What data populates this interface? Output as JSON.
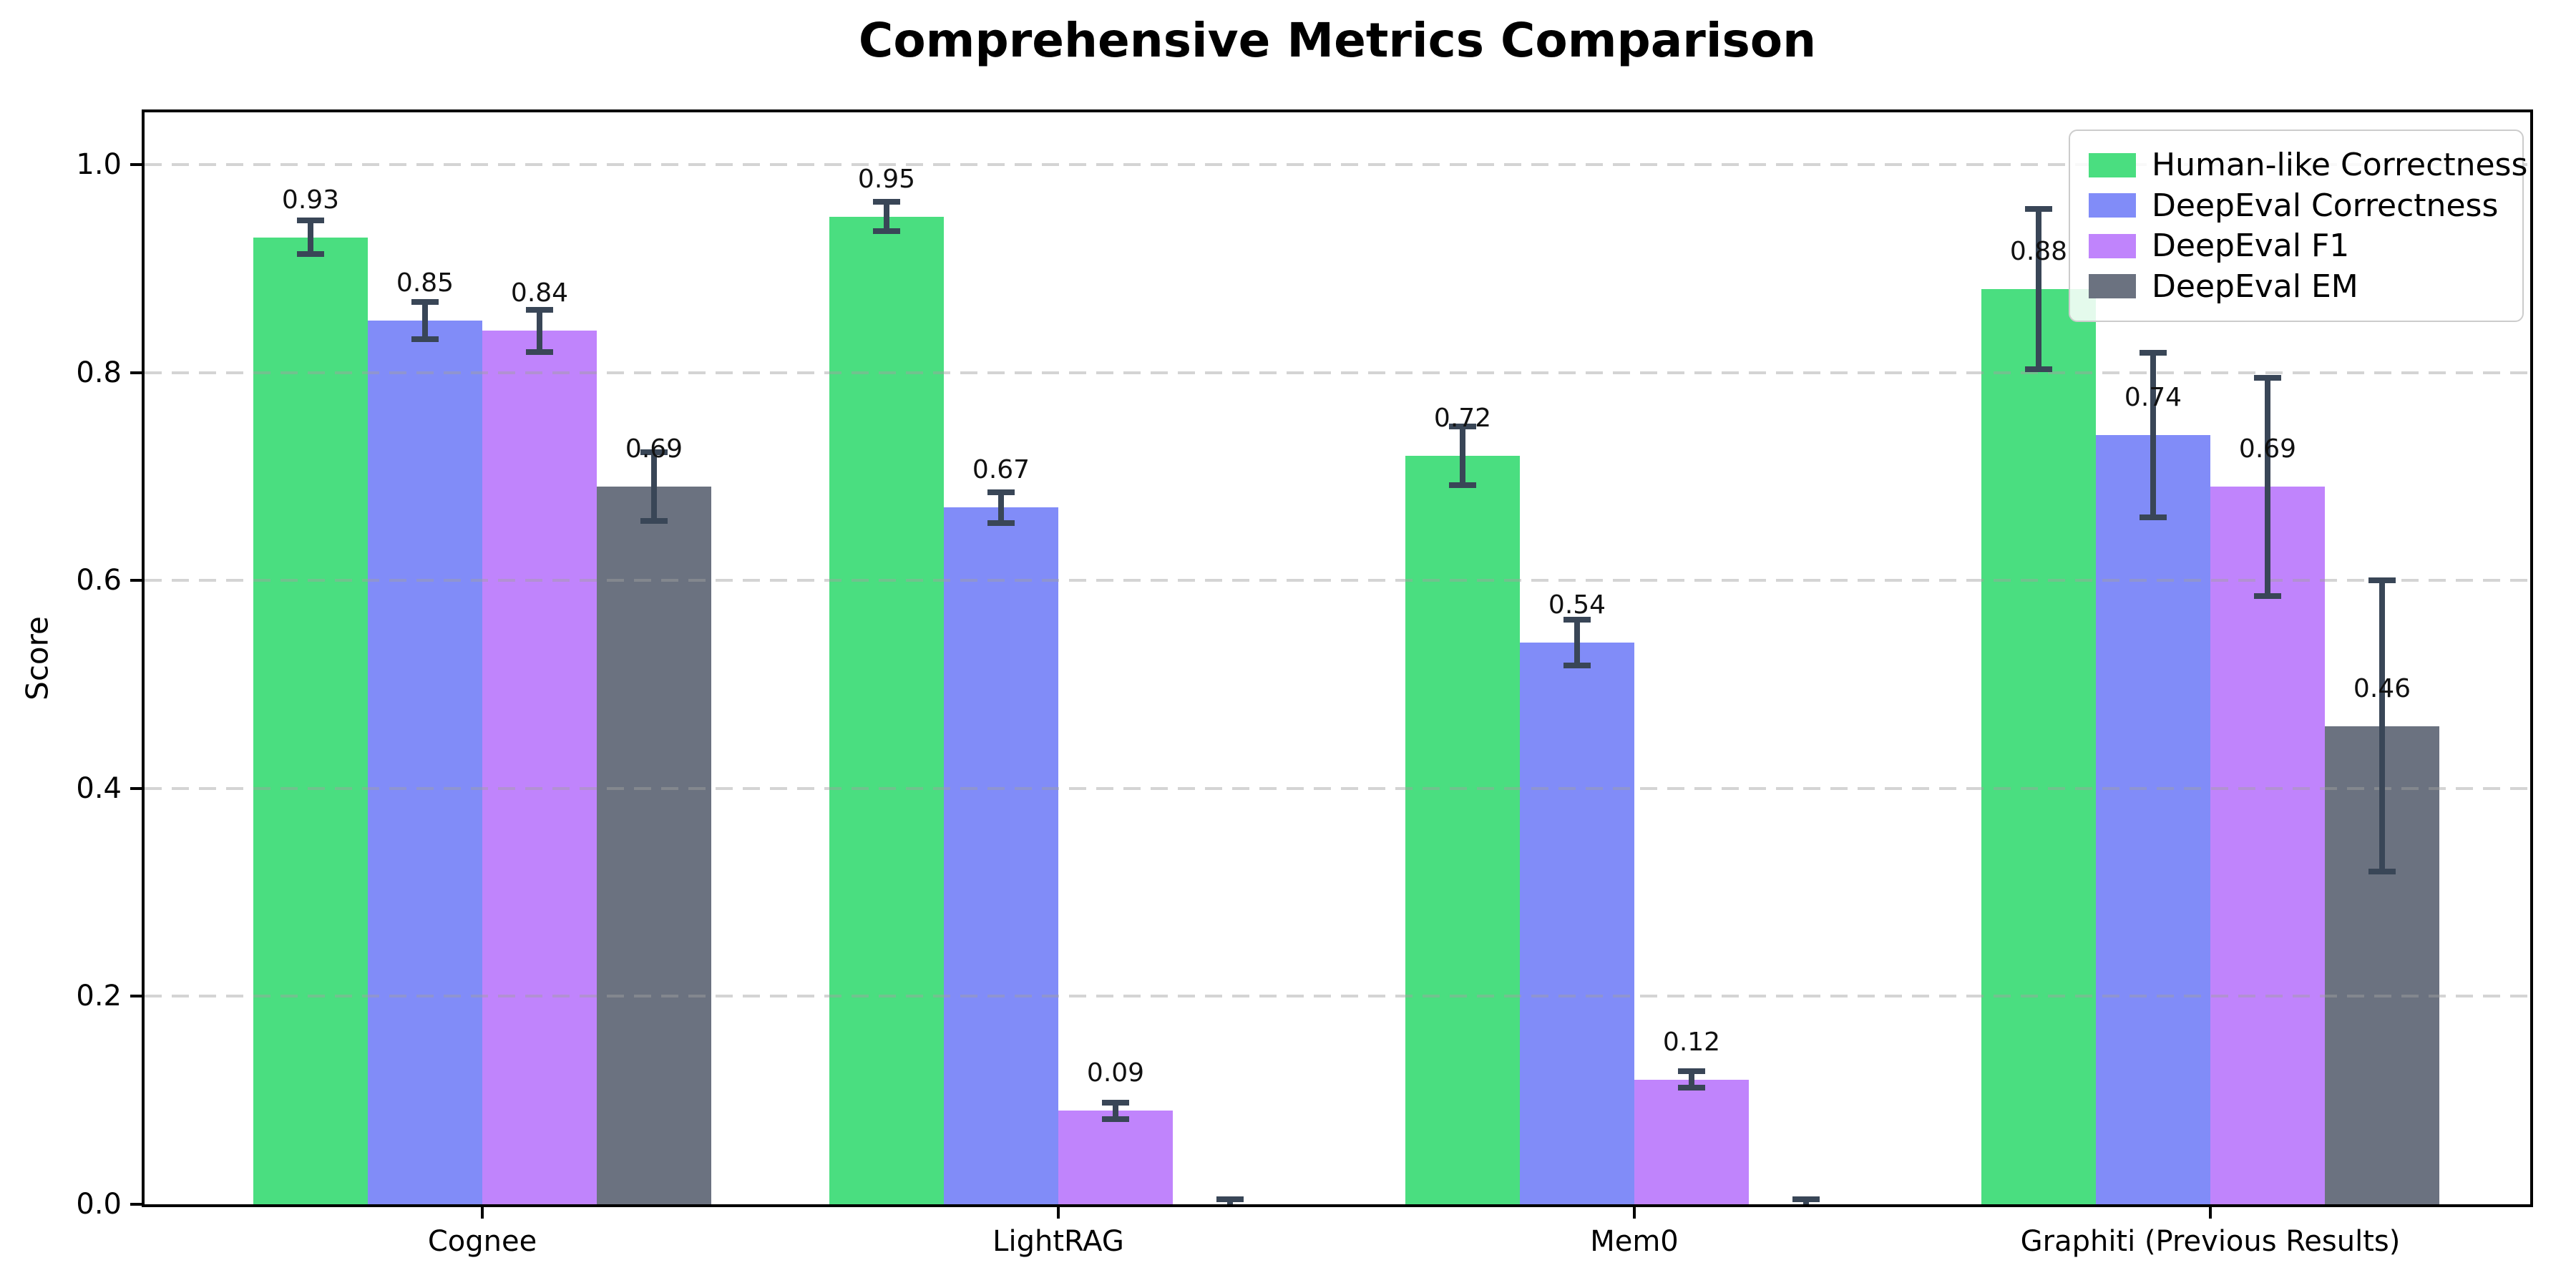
{
  "chart_data": {
    "type": "bar",
    "title": "Comprehensive Metrics Comparison",
    "ylabel": "Score",
    "categories": [
      "Cognee",
      "LightRAG",
      "Mem0",
      "Graphiti (Previous Results)"
    ],
    "series": [
      {
        "name": "Human-like Correctness",
        "color": "#4ade80",
        "values": [
          0.93,
          0.95,
          0.72,
          0.88
        ],
        "errors": [
          0.016,
          0.014,
          0.028,
          0.077
        ],
        "labels": [
          "0.93",
          "0.95",
          "0.72",
          "0.88"
        ]
      },
      {
        "name": "DeepEval Correctness",
        "color": "#818cf8",
        "values": [
          0.85,
          0.67,
          0.54,
          0.74
        ],
        "errors": [
          0.018,
          0.015,
          0.022,
          0.079
        ],
        "labels": [
          "0.85",
          "0.67",
          "0.54",
          "0.74"
        ]
      },
      {
        "name": "DeepEval F1",
        "color": "#c084fc",
        "values": [
          0.84,
          0.09,
          0.12,
          0.69
        ],
        "errors": [
          0.02,
          0.008,
          0.008,
          0.105
        ],
        "labels": [
          "0.84",
          "0.09",
          "0.12",
          "0.69"
        ]
      },
      {
        "name": "DeepEval EM",
        "color": "#6b7280",
        "values": [
          0.69,
          0.0,
          0.0,
          0.46
        ],
        "errors": [
          0.033,
          0.005,
          0.005,
          0.14
        ],
        "labels": [
          "0.69",
          "",
          "",
          "0.46"
        ]
      }
    ],
    "yticks": [
      {
        "value": 0.0,
        "label": "0.0"
      },
      {
        "value": 0.2,
        "label": "0.2"
      },
      {
        "value": 0.4,
        "label": "0.4"
      },
      {
        "value": 0.6,
        "label": "0.6"
      },
      {
        "value": 0.8,
        "label": "0.8"
      },
      {
        "value": 1.0,
        "label": "1.0"
      }
    ],
    "ylim": [
      0,
      1.05
    ],
    "grid": "dashed-horizontal",
    "grid_color": "rgba(160,160,160,0.45)",
    "error_color": "#394657",
    "legend_position": "upper-right"
  }
}
